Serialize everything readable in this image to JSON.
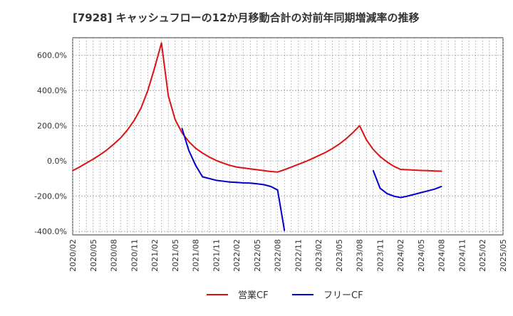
{
  "chart_data": {
    "type": "line",
    "title": "[7928]  キャッシュフローの12か月移動合計の対前年同期増減率の推移",
    "xlabel": "",
    "ylabel": "",
    "x_tick_labels": [
      "2020/02",
      "2020/05",
      "2020/08",
      "2020/11",
      "2021/02",
      "2021/05",
      "2021/08",
      "2021/11",
      "2022/02",
      "2022/05",
      "2022/08",
      "2022/11",
      "2023/02",
      "2023/05",
      "2023/08",
      "2023/11",
      "2024/02",
      "2024/05",
      "2024/08",
      "2024/11",
      "2025/02",
      "2025/05"
    ],
    "y_ticks": [
      600,
      400,
      200,
      0,
      -200,
      -400
    ],
    "y_tick_labels": [
      "600.0%",
      "400.0%",
      "200.0%",
      "0.0%",
      "-200.0%",
      "-400.0%"
    ],
    "ylim": [
      -420,
      700
    ],
    "xlim": [
      "2020/02",
      "2025/05"
    ],
    "grid": true,
    "legend_position": "bottom",
    "series": [
      {
        "name": "営業CF",
        "color": "#dd1111",
        "points": [
          [
            "2020/02",
            -55
          ],
          [
            "2020/03",
            -35
          ],
          [
            "2020/04",
            -12
          ],
          [
            "2020/05",
            10
          ],
          [
            "2020/06",
            35
          ],
          [
            "2020/07",
            62
          ],
          [
            "2020/08",
            95
          ],
          [
            "2020/09",
            130
          ],
          [
            "2020/10",
            175
          ],
          [
            "2020/11",
            230
          ],
          [
            "2020/12",
            300
          ],
          [
            "2021/01",
            400
          ],
          [
            "2021/02",
            530
          ],
          [
            "2021/03",
            670
          ],
          [
            "2021/04",
            370
          ],
          [
            "2021/05",
            235
          ],
          [
            "2021/06",
            160
          ],
          [
            "2021/07",
            110
          ],
          [
            "2021/08",
            72
          ],
          [
            "2021/09",
            45
          ],
          [
            "2021/10",
            22
          ],
          [
            "2021/11",
            3
          ],
          [
            "2021/12",
            -12
          ],
          [
            "2022/01",
            -25
          ],
          [
            "2022/02",
            -35
          ],
          [
            "2022/03",
            -40
          ],
          [
            "2022/04",
            -45
          ],
          [
            "2022/05",
            -50
          ],
          [
            "2022/06",
            -55
          ],
          [
            "2022/07",
            -60
          ],
          [
            "2022/08",
            -63
          ],
          [
            "2022/09",
            -50
          ],
          [
            "2022/10",
            -35
          ],
          [
            "2022/11",
            -20
          ],
          [
            "2022/12",
            -5
          ],
          [
            "2023/01",
            12
          ],
          [
            "2023/02",
            30
          ],
          [
            "2023/03",
            48
          ],
          [
            "2023/04",
            70
          ],
          [
            "2023/05",
            95
          ],
          [
            "2023/06",
            125
          ],
          [
            "2023/07",
            160
          ],
          [
            "2023/08",
            200
          ],
          [
            "2023/09",
            120
          ],
          [
            "2023/10",
            65
          ],
          [
            "2023/11",
            25
          ],
          [
            "2023/12",
            -5
          ],
          [
            "2024/01",
            -30
          ],
          [
            "2024/02",
            -48
          ],
          [
            "2024/03",
            -50
          ],
          [
            "2024/04",
            -52
          ],
          [
            "2024/05",
            -54
          ],
          [
            "2024/06",
            -55
          ],
          [
            "2024/07",
            -57
          ],
          [
            "2024/08",
            -58
          ]
        ]
      },
      {
        "name": "フリーCF",
        "color": "#0000cc",
        "points": [
          [
            "2021/06",
            185
          ],
          [
            "2021/07",
            60
          ],
          [
            "2021/08",
            -25
          ],
          [
            "2021/09",
            -90
          ],
          [
            "2021/10",
            -100
          ],
          [
            "2021/11",
            -110
          ],
          [
            "2021/12",
            -115
          ],
          [
            "2022/01",
            -120
          ],
          [
            "2022/02",
            -122
          ],
          [
            "2022/03",
            -125
          ],
          [
            "2022/04",
            -126
          ],
          [
            "2022/05",
            -130
          ],
          [
            "2022/06",
            -135
          ],
          [
            "2022/07",
            -145
          ],
          [
            "2022/08",
            -165
          ],
          [
            "2022/09",
            -395
          ]
        ]
      },
      {
        "name": "フリーCF",
        "color": "#0000cc",
        "points": [
          [
            "2023/10",
            -55
          ],
          [
            "2023/11",
            -155
          ],
          [
            "2023/12",
            -185
          ],
          [
            "2024/01",
            -200
          ],
          [
            "2024/02",
            -208
          ],
          [
            "2024/03",
            -200
          ],
          [
            "2024/04",
            -190
          ],
          [
            "2024/05",
            -180
          ],
          [
            "2024/06",
            -170
          ],
          [
            "2024/07",
            -160
          ],
          [
            "2024/08",
            -145
          ]
        ]
      }
    ],
    "legend": [
      {
        "name": "営業CF",
        "color": "#dd1111"
      },
      {
        "name": "フリーCF",
        "color": "#0000cc"
      }
    ]
  }
}
